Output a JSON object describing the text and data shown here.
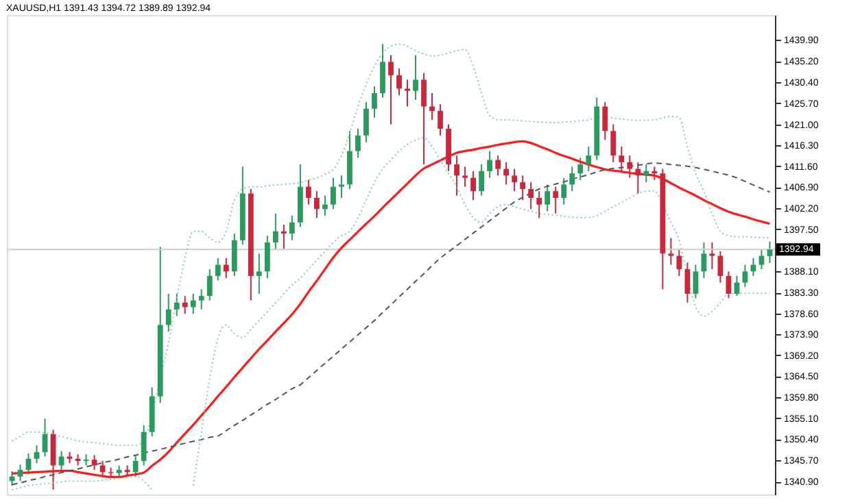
{
  "chart_data": {
    "type": "candlestick",
    "title": "XAUUSD,H1  1391.43 1394.72 1389.89 1392.94",
    "categories": [
      null,
      null,
      null,
      null,
      null,
      null,
      null,
      null,
      null,
      null,
      null,
      null,
      null,
      null,
      null,
      null,
      null,
      null,
      null,
      null,
      null,
      null,
      null,
      null,
      null,
      null,
      null,
      null,
      null,
      null,
      null,
      null,
      null,
      null,
      null,
      null,
      null,
      null,
      null,
      null,
      null,
      null,
      null,
      null,
      null,
      null,
      null,
      null,
      null,
      null,
      null,
      null,
      null,
      null,
      null,
      null,
      null,
      null,
      null,
      null,
      null,
      null,
      null,
      null,
      null,
      null,
      null,
      null,
      null,
      null,
      null,
      null,
      null,
      null,
      null,
      null,
      null,
      null,
      null,
      null,
      null,
      null,
      null,
      null,
      null,
      null,
      null,
      null,
      null,
      null,
      null,
      null,
      null
    ],
    "ohlc": [
      [
        1341.0,
        1343.2,
        1340.0,
        1342.0
      ],
      [
        1342.0,
        1344.7,
        1341.0,
        1343.5
      ],
      [
        1343.5,
        1347.2,
        1342.5,
        1346.0
      ],
      [
        1346.0,
        1349.0,
        1345.0,
        1347.5
      ],
      [
        1347.5,
        1355.0,
        1346.5,
        1351.5
      ],
      [
        1351.5,
        1352.5,
        1339.1,
        1344.5
      ],
      [
        1344.5,
        1347.7,
        1343.5,
        1346.5
      ],
      [
        1346.5,
        1347.5,
        1345.0,
        1346.0
      ],
      [
        1346.0,
        1347.0,
        1344.5,
        1345.5
      ],
      [
        1345.5,
        1347.0,
        1344.5,
        1345.8
      ],
      [
        1345.8,
        1346.8,
        1343.5,
        1344.5
      ],
      [
        1344.5,
        1345.5,
        1342.0,
        1343.0
      ],
      [
        1343.0,
        1344.0,
        1341.8,
        1342.8
      ],
      [
        1342.8,
        1344.5,
        1341.8,
        1343.5
      ],
      [
        1343.5,
        1344.5,
        1342.0,
        1343.0
      ],
      [
        1343.0,
        1346.7,
        1342.0,
        1345.5
      ],
      [
        1345.5,
        1353.5,
        1344.5,
        1352.0
      ],
      [
        1352.0,
        1362.0,
        1351.0,
        1360.0
      ],
      [
        1360.0,
        1393.5,
        1358.5,
        1376.0
      ],
      [
        1376.0,
        1383.0,
        1374.5,
        1379.5
      ],
      [
        1379.5,
        1383.0,
        1378.0,
        1381.0
      ],
      [
        1381.0,
        1382.5,
        1378.5,
        1380.0
      ],
      [
        1380.0,
        1383.0,
        1378.5,
        1381.5
      ],
      [
        1381.5,
        1384.0,
        1379.5,
        1382.5
      ],
      [
        1382.5,
        1388.5,
        1381.5,
        1387.0
      ],
      [
        1387.0,
        1391.0,
        1386.0,
        1389.5
      ],
      [
        1389.5,
        1391.0,
        1386.5,
        1388.0
      ],
      [
        1388.0,
        1396.5,
        1387.0,
        1395.0
      ],
      [
        1395.0,
        1411.5,
        1394.0,
        1405.5
      ],
      [
        1405.5,
        1406.5,
        1381.5,
        1387.0
      ],
      [
        1387.0,
        1392.0,
        1383.0,
        1388.0
      ],
      [
        1388.0,
        1396.0,
        1386.5,
        1394.5
      ],
      [
        1394.5,
        1401.0,
        1393.0,
        1397.0
      ],
      [
        1397.0,
        1398.5,
        1393.0,
        1396.5
      ],
      [
        1396.5,
        1400.5,
        1395.0,
        1399.0
      ],
      [
        1399.0,
        1412.0,
        1398.0,
        1407.0
      ],
      [
        1407.0,
        1408.5,
        1403.0,
        1404.5
      ],
      [
        1404.5,
        1406.0,
        1400.0,
        1402.0
      ],
      [
        1402.0,
        1405.0,
        1400.5,
        1403.0
      ],
      [
        1403.0,
        1409.0,
        1402.0,
        1407.0
      ],
      [
        1407.0,
        1409.5,
        1404.5,
        1407.5
      ],
      [
        1407.5,
        1419.5,
        1406.5,
        1415.0
      ],
      [
        1415.0,
        1420.0,
        1413.5,
        1418.5
      ],
      [
        1418.5,
        1426.0,
        1417.0,
        1424.5
      ],
      [
        1424.5,
        1429.5,
        1422.5,
        1428.0
      ],
      [
        1428.0,
        1439.0,
        1427.0,
        1435.0
      ],
      [
        1435.0,
        1436.5,
        1421.0,
        1432.0
      ],
      [
        1432.0,
        1433.5,
        1427.5,
        1429.0
      ],
      [
        1429.0,
        1431.0,
        1425.0,
        1428.5
      ],
      [
        1428.5,
        1436.5,
        1426.5,
        1431.0
      ],
      [
        1431.0,
        1432.5,
        1412.0,
        1425.0
      ],
      [
        1425.0,
        1428.0,
        1422.0,
        1424.0
      ],
      [
        1424.0,
        1425.5,
        1418.5,
        1420.0
      ],
      [
        1420.0,
        1421.0,
        1410.5,
        1412.0
      ],
      [
        1412.0,
        1414.0,
        1405.0,
        1409.5
      ],
      [
        1409.5,
        1411.5,
        1407.0,
        1409.0
      ],
      [
        1409.0,
        1410.5,
        1404.0,
        1406.0
      ],
      [
        1406.0,
        1412.0,
        1405.0,
        1410.5
      ],
      [
        1410.5,
        1415.0,
        1409.0,
        1413.0
      ],
      [
        1413.0,
        1414.0,
        1409.5,
        1411.0
      ],
      [
        1411.0,
        1412.5,
        1407.5,
        1409.5
      ],
      [
        1409.5,
        1411.0,
        1406.0,
        1408.0
      ],
      [
        1408.0,
        1409.5,
        1404.0,
        1406.5
      ],
      [
        1406.5,
        1408.0,
        1402.0,
        1404.5
      ],
      [
        1404.5,
        1406.0,
        1400.0,
        1403.0
      ],
      [
        1403.0,
        1407.5,
        1401.5,
        1406.0
      ],
      [
        1406.0,
        1407.0,
        1401.0,
        1404.5
      ],
      [
        1404.5,
        1409.0,
        1403.0,
        1407.5
      ],
      [
        1407.5,
        1411.5,
        1406.0,
        1410.0
      ],
      [
        1410.0,
        1413.5,
        1408.5,
        1412.0
      ],
      [
        1412.0,
        1416.0,
        1410.5,
        1414.0
      ],
      [
        1414.0,
        1427.0,
        1413.0,
        1425.0
      ],
      [
        1425.0,
        1426.0,
        1417.5,
        1419.5
      ],
      [
        1419.5,
        1421.0,
        1412.5,
        1414.0
      ],
      [
        1414.0,
        1416.0,
        1410.5,
        1412.5
      ],
      [
        1412.5,
        1414.0,
        1409.0,
        1411.0
      ],
      [
        1411.0,
        1412.5,
        1405.5,
        1409.5
      ],
      [
        1409.5,
        1412.0,
        1408.0,
        1410.5
      ],
      [
        1410.5,
        1411.5,
        1408.5,
        1410.0
      ],
      [
        1410.0,
        1411.0,
        1384.0,
        1392.0
      ],
      [
        1392.0,
        1395.5,
        1389.5,
        1391.5
      ],
      [
        1391.5,
        1393.0,
        1387.0,
        1388.5
      ],
      [
        1388.5,
        1390.0,
        1381.0,
        1383.0
      ],
      [
        1383.0,
        1389.5,
        1382.0,
        1388.0
      ],
      [
        1388.0,
        1394.5,
        1386.5,
        1392.0
      ],
      [
        1392.0,
        1394.5,
        1388.5,
        1391.5
      ],
      [
        1391.5,
        1392.5,
        1385.5,
        1387.0
      ],
      [
        1387.0,
        1388.0,
        1382.0,
        1383.0
      ],
      [
        1383.0,
        1387.0,
        1382.5,
        1385.5
      ],
      [
        1385.5,
        1389.5,
        1384.5,
        1388.0
      ],
      [
        1388.0,
        1391.0,
        1387.0,
        1389.5
      ],
      [
        1389.5,
        1393.0,
        1388.5,
        1391.5
      ],
      [
        1391.43,
        1394.72,
        1389.89,
        1392.94
      ]
    ],
    "colors": [
      "#2b9a5e",
      "#2b9a5e",
      "#2b9a5e",
      "#2b9a5e",
      "#2b9a5e",
      "#c8283c",
      "#2b9a5e",
      "#c8283c",
      "#c8283c",
      "#2b9a5e",
      "#c8283c",
      "#c8283c",
      "#c8283c",
      "#2b9a5e",
      "#c8283c",
      "#2b9a5e",
      "#2b9a5e",
      "#2b9a5e",
      "#2b9a5e",
      "#2b9a5e",
      "#2b9a5e",
      "#c8283c",
      "#2b9a5e",
      "#2b9a5e",
      "#2b9a5e",
      "#2b9a5e",
      "#c8283c",
      "#2b9a5e",
      "#2b9a5e",
      "#c8283c",
      "#2b9a5e",
      "#2b9a5e",
      "#2b9a5e",
      "#c8283c",
      "#2b9a5e",
      "#2b9a5e",
      "#c8283c",
      "#c8283c",
      "#2b9a5e",
      "#2b9a5e",
      "#2b9a5e",
      "#2b9a5e",
      "#2b9a5e",
      "#2b9a5e",
      "#2b9a5e",
      "#2b9a5e",
      "#c8283c",
      "#c8283c",
      "#c8283c",
      "#2b9a5e",
      "#c8283c",
      "#c8283c",
      "#c8283c",
      "#c8283c",
      "#c8283c",
      "#c8283c",
      "#c8283c",
      "#2b9a5e",
      "#2b9a5e",
      "#c8283c",
      "#c8283c",
      "#c8283c",
      "#c8283c",
      "#c8283c",
      "#c8283c",
      "#2b9a5e",
      "#c8283c",
      "#2b9a5e",
      "#2b9a5e",
      "#2b9a5e",
      "#2b9a5e",
      "#2b9a5e",
      "#c8283c",
      "#c8283c",
      "#c8283c",
      "#c8283c",
      "#c8283c",
      "#2b9a5e",
      "#c8283c",
      "#c8283c",
      "#c8283c",
      "#c8283c",
      "#c8283c",
      "#2b9a5e",
      "#2b9a5e",
      "#c8283c",
      "#c8283c",
      "#c8283c",
      "#2b9a5e",
      "#2b9a5e",
      "#2b9a5e",
      "#2b9a5e",
      "#2b9a5e"
    ],
    "series": [
      {
        "type": "line",
        "color": "#ff1a1a",
        "line_style": "solid",
        "values": [
          1342.7,
          1342.8,
          1342.9,
          1343.0,
          1343.1,
          1343.2,
          1343.3,
          1343.3,
          1343.0,
          1342.7,
          1342.4,
          1342.1,
          1341.9,
          1341.9,
          1342.2,
          1342.5,
          1342.9,
          1344.4,
          1345.8,
          1347.5,
          1349.6,
          1351.6,
          1353.6,
          1355.7,
          1357.8,
          1360.0,
          1362.1,
          1364.3,
          1366.4,
          1368.5,
          1370.6,
          1372.5,
          1374.5,
          1376.4,
          1378.4,
          1380.7,
          1383.4,
          1385.9,
          1388.5,
          1391.1,
          1393.3,
          1395.1,
          1396.9,
          1398.7,
          1400.4,
          1402.3,
          1404.1,
          1405.9,
          1407.7,
          1409.5,
          1411.1,
          1412.0,
          1412.9,
          1413.8,
          1414.6,
          1415.0,
          1415.3,
          1415.7,
          1416.0,
          1416.4,
          1416.7,
          1417.0,
          1417.2,
          1416.8,
          1416.1,
          1415.4,
          1414.6,
          1413.9,
          1413.3,
          1412.6,
          1412.0,
          1411.4,
          1410.9,
          1410.6,
          1410.4,
          1410.1,
          1409.9,
          1409.7,
          1409.5,
          1408.8,
          1407.8,
          1406.8,
          1405.9,
          1405.0,
          1404.0,
          1403.1,
          1402.2,
          1401.4,
          1400.8,
          1400.3,
          1399.7,
          1399.2,
          1398.7
        ]
      },
      {
        "type": "line",
        "color": "#555555",
        "line_style": "dashed",
        "values": [
          1340.2,
          1340.6,
          1341.1,
          1341.5,
          1342.0,
          1342.4,
          1342.9,
          1343.3,
          1343.7,
          1344.2,
          1344.6,
          1345.1,
          1345.5,
          1345.9,
          1346.4,
          1346.8,
          1347.3,
          1347.7,
          1348.1,
          1348.6,
          1349.0,
          1349.5,
          1349.9,
          1350.3,
          1350.8,
          1351.1,
          1352.3,
          1353.5,
          1354.6,
          1355.8,
          1357.0,
          1358.2,
          1359.3,
          1360.5,
          1361.7,
          1362.6,
          1364.2,
          1365.8,
          1367.4,
          1369.0,
          1370.6,
          1372.2,
          1373.8,
          1375.4,
          1377.0,
          1378.8,
          1380.5,
          1382.3,
          1384.0,
          1385.8,
          1387.5,
          1389.3,
          1391.0,
          1392.4,
          1393.8,
          1395.2,
          1396.6,
          1398.0,
          1399.4,
          1400.8,
          1402.2,
          1403.6,
          1404.6,
          1405.6,
          1406.5,
          1407.1,
          1407.6,
          1408.1,
          1408.7,
          1409.2,
          1409.7,
          1410.3,
          1410.8,
          1411.1,
          1411.3,
          1411.6,
          1411.8,
          1412.1,
          1412.3,
          1412.2,
          1412.0,
          1411.8,
          1411.6,
          1411.3,
          1410.9,
          1410.5,
          1410.0,
          1409.6,
          1409.0,
          1408.2,
          1407.4,
          1406.6,
          1405.8
        ]
      },
      {
        "type": "line",
        "color": "#7fcf9f",
        "line_style": "dotted",
        "values": [
          1350.0,
          1351.0,
          1352.0,
          1352.0,
          1351.8,
          1351.5,
          1351.0,
          1350.5,
          1350.0,
          1349.8,
          1349.6,
          1349.4,
          1349.2,
          1349.0,
          1349.0,
          1349.0,
          1350.0,
          1356.0,
          1364.0,
          1372.0,
          1382.0,
          1391.0,
          1397.0,
          1397.0,
          1395.5,
          1394.5,
          1397.0,
          1404.0,
          1406.5,
          1407.0,
          1407.0,
          1407.2,
          1407.4,
          1407.5,
          1407.7,
          1407.9,
          1408.5,
          1409.0,
          1409.8,
          1410.9,
          1414.0,
          1419.0,
          1425.0,
          1430.0,
          1434.0,
          1437.0,
          1438.5,
          1439.0,
          1438.5,
          1437.5,
          1436.8,
          1436.3,
          1436.5,
          1437.0,
          1437.5,
          1437.8,
          1434.0,
          1428.0,
          1423.0,
          1422.0,
          1422.0,
          1421.9,
          1421.8,
          1421.6,
          1421.5,
          1421.4,
          1421.4,
          1421.5,
          1421.6,
          1421.8,
          1422.0,
          1422.5,
          1422.6,
          1422.4,
          1422.2,
          1422.0,
          1421.9,
          1421.9,
          1422.0,
          1422.4,
          1422.8,
          1422.5,
          1416.0,
          1410.0,
          1406.0,
          1401.0,
          1397.0,
          1396.0,
          1395.8,
          1395.8,
          1395.7,
          1395.6,
          1395.6
        ]
      },
      {
        "type": "line",
        "color": "#7fcf9f",
        "line_style": "dotted",
        "values": [
          1339.0,
          1339.5,
          1340.0,
          1340.2,
          1340.4,
          1340.6,
          1340.8,
          1341.0,
          1341.0,
          1341.0,
          1341.0,
          1341.2,
          1341.4,
          1341.6,
          1341.8,
          1342.0,
          1341.0,
          1339.0,
          null,
          null,
          null,
          null,
          1340.0,
          1352.0,
          1364.0,
          1373.0,
          1376.0,
          1374.0,
          1373.2,
          1375.0,
          1377.0,
          1379.0,
          1381.0,
          1383.0,
          1385.0,
          1386.5,
          1388.5,
          1390.5,
          1392.5,
          1394.5,
          1396.0,
          1397.0,
          1400.0,
          1404.0,
          1408.0,
          1411.0,
          1413.0,
          1415.0,
          1416.5,
          1417.5,
          1418.0,
          1416.0,
          1413.0,
          1410.0,
          1407.0,
          1403.0,
          1400.0,
          1399.0,
          1401.0,
          1402.5,
          1403.0,
          1402.5,
          1402.0,
          1401.5,
          1401.0,
          1400.8,
          1400.6,
          1400.4,
          1400.2,
          1400.1,
          1400.1,
          1400.5,
          1401.5,
          1402.5,
          1403.5,
          1404.5,
          1405.5,
          1406.0,
          1406.1,
          1403.0,
          1399.0,
          1395.0,
          1387.0,
          1380.0,
          1378.0,
          1379.0,
          1381.0,
          1383.0,
          1383.1,
          1383.1,
          1383.1,
          1383.1,
          1383.1
        ]
      }
    ],
    "ylim": [
      1338.0,
      1445.5
    ],
    "yticks": [
      {
        "value": 1439.9,
        "label": "1439.90"
      },
      {
        "value": 1435.2,
        "label": "1435.20"
      },
      {
        "value": 1430.4,
        "label": "1430.40"
      },
      {
        "value": 1425.7,
        "label": "1425.70"
      },
      {
        "value": 1421.0,
        "label": "1421.00"
      },
      {
        "value": 1416.3,
        "label": "1416.30"
      },
      {
        "value": 1411.6,
        "label": "1411.60"
      },
      {
        "value": 1406.9,
        "label": "1406.90"
      },
      {
        "value": 1402.2,
        "label": "1402.20"
      },
      {
        "value": 1397.5,
        "label": "1397.50"
      },
      {
        "value": 1388.1,
        "label": "1388.10"
      },
      {
        "value": 1383.3,
        "label": "1383.30"
      },
      {
        "value": 1378.6,
        "label": "1378.60"
      },
      {
        "value": 1373.9,
        "label": "1373.90"
      },
      {
        "value": 1369.2,
        "label": "1369.20"
      },
      {
        "value": 1364.5,
        "label": "1364.50"
      },
      {
        "value": 1359.8,
        "label": "1359.80"
      },
      {
        "value": 1355.1,
        "label": "1355.10"
      },
      {
        "value": 1350.4,
        "label": "1350.40"
      },
      {
        "value": 1345.7,
        "label": "1345.70"
      },
      {
        "value": 1340.9,
        "label": "1340.90"
      }
    ],
    "ref_lines": [
      {
        "axis": "y",
        "value": 1392.94,
        "label": "1392.94",
        "color": "#cccccc"
      }
    ],
    "tick_labels": "y",
    "grid": false
  }
}
